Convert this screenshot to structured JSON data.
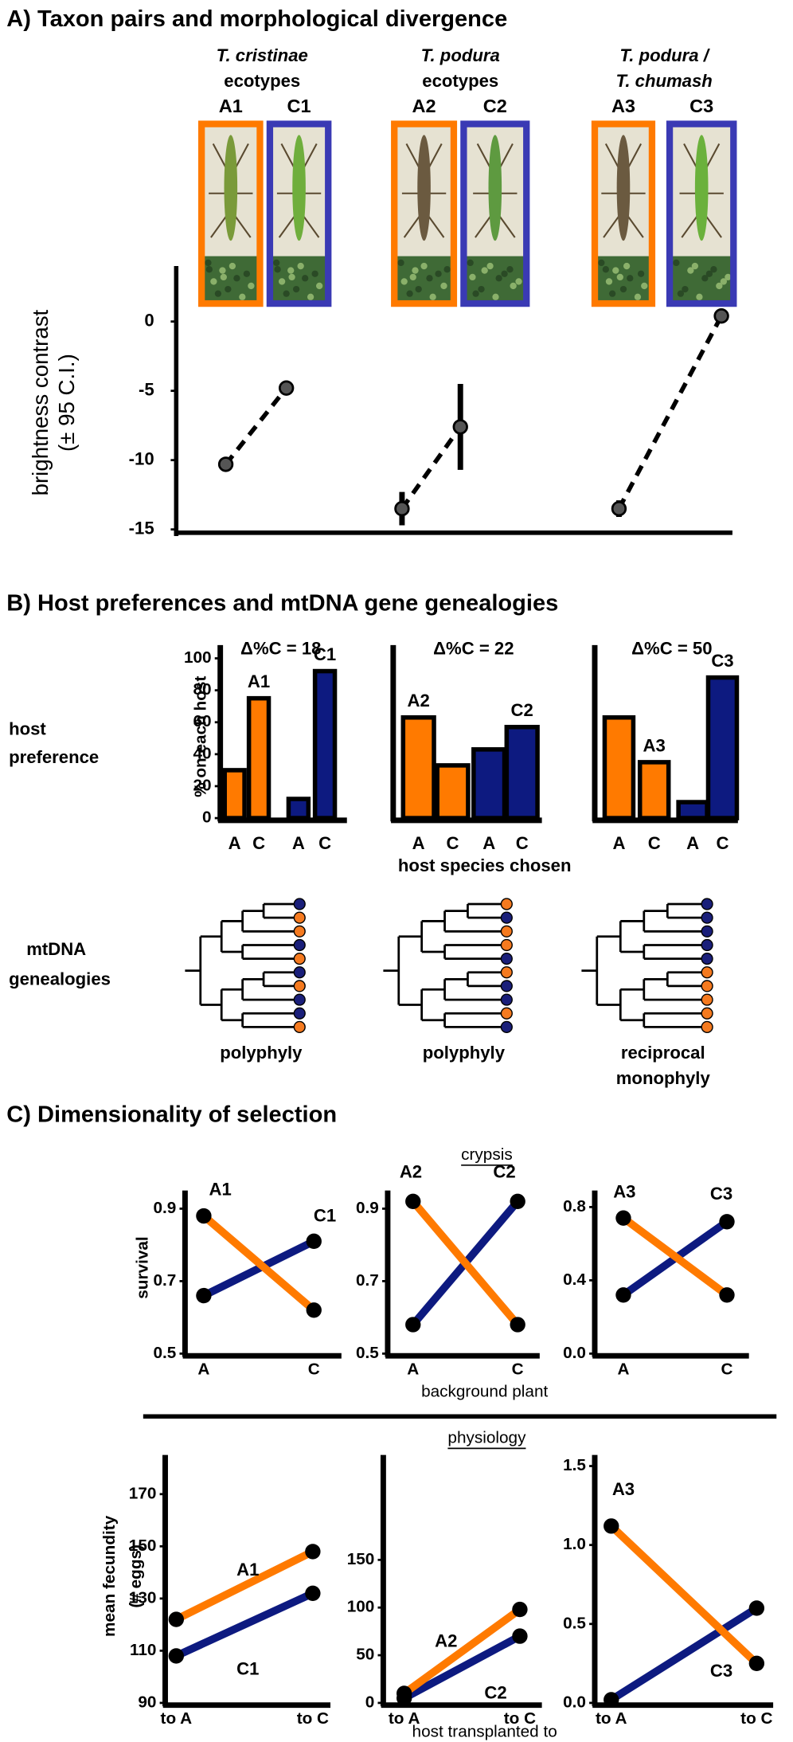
{
  "panel_a": {
    "heading": "A) Taxon pairs and morphological divergence",
    "taxa": [
      {
        "name": [
          "T. cristinae",
          "ecotypes"
        ],
        "labels": [
          "A1",
          "C1"
        ]
      },
      {
        "name": [
          "T. podura",
          "ecotypes"
        ],
        "labels": [
          "A2",
          "C2"
        ]
      },
      {
        "name": [
          "T. podura /",
          "T. chumash"
        ],
        "labels": [
          "A3",
          "C3"
        ]
      }
    ]
  },
  "panel_b": {
    "heading": "B) Host preferences and mtDNA gene genealogies",
    "side_label": [
      "host",
      "preference"
    ],
    "xlabel": "host species chosen",
    "genealogy_label": [
      "mtDNA",
      "genealogies"
    ],
    "trees": [
      {
        "tips": [
          "#1a1f7a",
          "#f57a1f",
          "#f57a1f",
          "#1a1f7a",
          "#f57a1f",
          "#1a1f7a",
          "#f57a1f",
          "#1a1f7a",
          "#1a1f7a",
          "#f57a1f"
        ],
        "label": [
          "polyphyly"
        ]
      },
      {
        "tips": [
          "#f57a1f",
          "#1a1f7a",
          "#f57a1f",
          "#f57a1f",
          "#1a1f7a",
          "#f57a1f",
          "#1a1f7a",
          "#1a1f7a",
          "#f57a1f",
          "#1a1f7a"
        ],
        "label": [
          "polyphyly"
        ]
      },
      {
        "tips": [
          "#1a1f7a",
          "#1a1f7a",
          "#1a1f7a",
          "#1a1f7a",
          "#1a1f7a",
          "#f57a1f",
          "#f57a1f",
          "#f57a1f",
          "#f57a1f",
          "#f57a1f"
        ],
        "label": [
          "reciprocal",
          "monophyly"
        ]
      }
    ]
  },
  "panel_c": {
    "heading": "C) Dimensionality of selection",
    "crypsis": "crypsis",
    "crypsis_xlabel": "background plant",
    "physiology": "physiology",
    "physiology_xlabel": "host transplanted to"
  },
  "chart_data": [
    {
      "type": "dotplot",
      "ylabel": [
        "brightness contrast",
        "(± 95 C.I.)"
      ],
      "ylim": [
        -15,
        4
      ],
      "yticks": [
        -15,
        -10,
        -5,
        0
      ],
      "series": [
        {
          "color": "#000000",
          "values": [
            -10.3,
            -4.8
          ],
          "errors": [
            0.5,
            0.5
          ]
        },
        {
          "color": "#000000",
          "values": [
            -13.5,
            -7.6
          ],
          "errors": [
            1.2,
            3.1
          ]
        },
        {
          "color": "#000000",
          "values": [
            -13.5,
            0.4
          ],
          "errors": [
            0.6,
            0.5
          ]
        }
      ]
    },
    {
      "type": "bar",
      "title": "Δ%C = 18",
      "ylabel": "% on each host",
      "categories": [
        "A",
        "C",
        "A",
        "C"
      ],
      "ylim": [
        0,
        100
      ],
      "yticks": [
        0,
        20,
        40,
        60,
        80,
        100
      ],
      "series": [
        {
          "name": "A1",
          "color": "#ff7a00",
          "values": [
            30,
            75,
            null,
            null
          ]
        },
        {
          "name": "C1",
          "color": "#0d1a80",
          "values": [
            null,
            null,
            12,
            92
          ]
        }
      ]
    },
    {
      "type": "bar",
      "title": "Δ%C = 22",
      "categories": [
        "A",
        "C",
        "A",
        "C"
      ],
      "ylim": [
        0,
        100
      ],
      "series": [
        {
          "name": "A2",
          "color": "#ff7a00",
          "values": [
            63,
            33,
            null,
            null
          ]
        },
        {
          "name": "C2",
          "color": "#0d1a80",
          "values": [
            null,
            null,
            43,
            57
          ]
        }
      ]
    },
    {
      "type": "bar",
      "title": "Δ%C = 50",
      "categories": [
        "A",
        "C",
        "A",
        "C"
      ],
      "ylim": [
        0,
        100
      ],
      "series": [
        {
          "name": "A3",
          "color": "#ff7a00",
          "values": [
            63,
            35,
            null,
            null
          ]
        },
        {
          "name": "C3",
          "color": "#0d1a80",
          "values": [
            null,
            null,
            10,
            88
          ]
        }
      ]
    },
    {
      "type": "line",
      "ylabel": "survival",
      "categories": [
        "A",
        "C"
      ],
      "ylim": [
        0.5,
        0.95
      ],
      "yticks": [
        0.5,
        0.7,
        0.9
      ],
      "series": [
        {
          "name": "A1",
          "color": "#ff7a00",
          "values": [
            0.88,
            0.62
          ]
        },
        {
          "name": "C1",
          "color": "#0d1a80",
          "values": [
            0.66,
            0.81
          ]
        }
      ]
    },
    {
      "type": "line",
      "categories": [
        "A",
        "C"
      ],
      "ylim": [
        0.5,
        0.95
      ],
      "yticks": [
        0.5,
        0.7,
        0.9
      ],
      "series": [
        {
          "name": "A2",
          "color": "#ff7a00",
          "values": [
            0.92,
            0.58
          ]
        },
        {
          "name": "C2",
          "color": "#0d1a80",
          "values": [
            0.58,
            0.92
          ]
        }
      ]
    },
    {
      "type": "line",
      "categories": [
        "A",
        "C"
      ],
      "ylim": [
        0,
        0.89
      ],
      "yticks": [
        {
          "value": 0,
          "label": "0.0"
        },
        0.4,
        0.8
      ],
      "series": [
        {
          "name": "A3",
          "color": "#ff7a00",
          "values": [
            0.74,
            0.32
          ]
        },
        {
          "name": "C3",
          "color": "#0d1a80",
          "values": [
            0.32,
            0.72
          ]
        }
      ]
    },
    {
      "type": "line",
      "ylabel": [
        "mean fecundity",
        "(# eggs)"
      ],
      "categories": [
        "to A",
        "to C"
      ],
      "ylim": [
        90,
        185
      ],
      "yticks": [
        90,
        110,
        130,
        150,
        170
      ],
      "series": [
        {
          "name": "A1",
          "color": "#ff7a00",
          "values": [
            122,
            148
          ]
        },
        {
          "name": "C1",
          "color": "#0d1a80",
          "values": [
            108,
            132
          ]
        }
      ]
    },
    {
      "type": "line",
      "categories": [
        "to A",
        "to C"
      ],
      "ylim": [
        0,
        260
      ],
      "yticks": [
        0,
        50,
        100,
        150
      ],
      "series": [
        {
          "name": "A2",
          "color": "#ff7a00",
          "values": [
            10,
            98
          ]
        },
        {
          "name": "C2",
          "color": "#0d1a80",
          "values": [
            5,
            70
          ]
        }
      ]
    },
    {
      "type": "line",
      "categories": [
        "to A",
        "to C"
      ],
      "ylim": [
        0,
        1.57
      ],
      "yticks": [
        {
          "value": 0,
          "label": "0.0"
        },
        0.5,
        {
          "value": 1,
          "label": "1.0"
        },
        1.5
      ],
      "series": [
        {
          "name": "A3",
          "color": "#ff7a00",
          "values": [
            1.12,
            0.25
          ]
        },
        {
          "name": "C3",
          "color": "#0d1a80",
          "values": [
            0.02,
            0.6
          ]
        }
      ]
    }
  ]
}
